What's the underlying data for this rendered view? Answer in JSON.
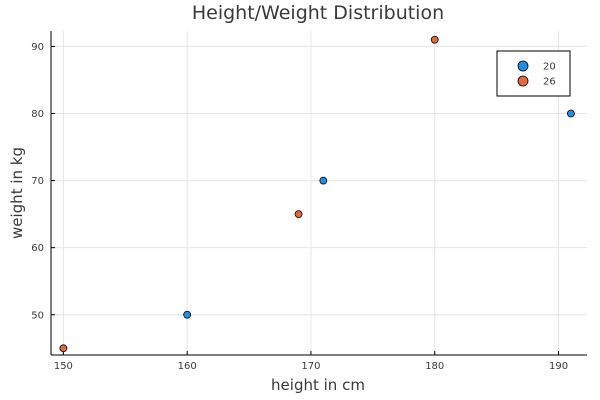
{
  "chart_data": {
    "type": "scatter",
    "title": "Height/Weight Distribution",
    "xlabel": "height in cm",
    "ylabel": "weight in kg",
    "xlim": [
      149,
      192.3
    ],
    "ylim": [
      44,
      92.3
    ],
    "x_ticks": [
      150,
      160,
      170,
      180,
      190
    ],
    "y_ticks": [
      50,
      60,
      70,
      80,
      90
    ],
    "grid": true,
    "legend_position": "top-right",
    "series": [
      {
        "name": "20",
        "color": "#1f8fe5",
        "points": [
          {
            "x": 160,
            "y": 50
          },
          {
            "x": 171,
            "y": 70
          },
          {
            "x": 191,
            "y": 80
          }
        ]
      },
      {
        "name": "26",
        "color": "#e26a3b",
        "points": [
          {
            "x": 150,
            "y": 45
          },
          {
            "x": 169,
            "y": 65
          },
          {
            "x": 180,
            "y": 91
          }
        ]
      }
    ]
  }
}
